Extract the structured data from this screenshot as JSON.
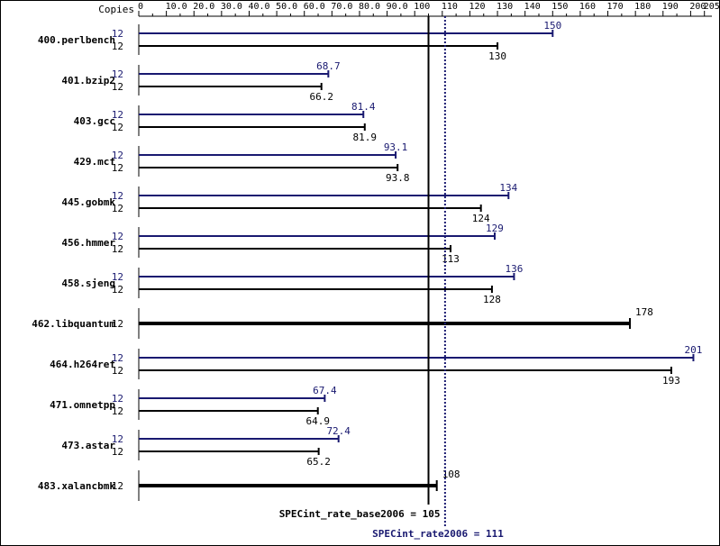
{
  "chart_data": {
    "type": "bar",
    "copies_label": "Copies",
    "x_ticks": [
      "0",
      "10.0",
      "20.0",
      "30.0",
      "40.0",
      "50.0",
      "60.0",
      "70.0",
      "80.0",
      "90.0",
      "100",
      "110",
      "120",
      "130",
      "140",
      "150",
      "160",
      "170",
      "180",
      "190",
      "200",
      "205"
    ],
    "xlim": [
      0,
      205
    ],
    "series": [
      {
        "name": "SPECint_rate2006",
        "color": "#191970"
      },
      {
        "name": "SPECint_rate_base2006",
        "color": "#000000"
      }
    ],
    "benchmarks": [
      {
        "name": "400.perlbench",
        "peak": {
          "copies": "12",
          "value": 150,
          "label": "150"
        },
        "base": {
          "copies": "12",
          "value": 130,
          "label": "130"
        }
      },
      {
        "name": "401.bzip2",
        "peak": {
          "copies": "12",
          "value": 68.7,
          "label": "68.7"
        },
        "base": {
          "copies": "12",
          "value": 66.2,
          "label": "66.2"
        }
      },
      {
        "name": "403.gcc",
        "peak": {
          "copies": "12",
          "value": 81.4,
          "label": "81.4"
        },
        "base": {
          "copies": "12",
          "value": 81.9,
          "label": "81.9"
        }
      },
      {
        "name": "429.mcf",
        "peak": {
          "copies": "12",
          "value": 93.1,
          "label": "93.1"
        },
        "base": {
          "copies": "12",
          "value": 93.8,
          "label": "93.8"
        }
      },
      {
        "name": "445.gobmk",
        "peak": {
          "copies": "12",
          "value": 134,
          "label": "134"
        },
        "base": {
          "copies": "12",
          "value": 124,
          "label": "124"
        }
      },
      {
        "name": "456.hmmer",
        "peak": {
          "copies": "12",
          "value": 129,
          "label": "129"
        },
        "base": {
          "copies": "12",
          "value": 113,
          "label": "113"
        }
      },
      {
        "name": "458.sjeng",
        "peak": {
          "copies": "12",
          "value": 136,
          "label": "136"
        },
        "base": {
          "copies": "12",
          "value": 128,
          "label": "128"
        }
      },
      {
        "name": "462.libquantum",
        "peak": null,
        "base": {
          "copies": "12",
          "value": 178,
          "label": "178"
        }
      },
      {
        "name": "464.h264ref",
        "peak": {
          "copies": "12",
          "value": 201,
          "label": "201"
        },
        "base": {
          "copies": "12",
          "value": 193,
          "label": "193"
        }
      },
      {
        "name": "471.omnetpp",
        "peak": {
          "copies": "12",
          "value": 67.4,
          "label": "67.4"
        },
        "base": {
          "copies": "12",
          "value": 64.9,
          "label": "64.9"
        }
      },
      {
        "name": "473.astar",
        "peak": {
          "copies": "12",
          "value": 72.4,
          "label": "72.4"
        },
        "base": {
          "copies": "12",
          "value": 65.2,
          "label": "65.2"
        }
      },
      {
        "name": "483.xalancbmk",
        "peak": null,
        "base": {
          "copies": "12",
          "value": 108,
          "label": "108"
        }
      }
    ],
    "base_summary": {
      "label": "SPECint_rate_base2006 = 105",
      "value": 105
    },
    "peak_summary": {
      "label": "SPECint_rate2006 = 111",
      "value": 111
    }
  }
}
